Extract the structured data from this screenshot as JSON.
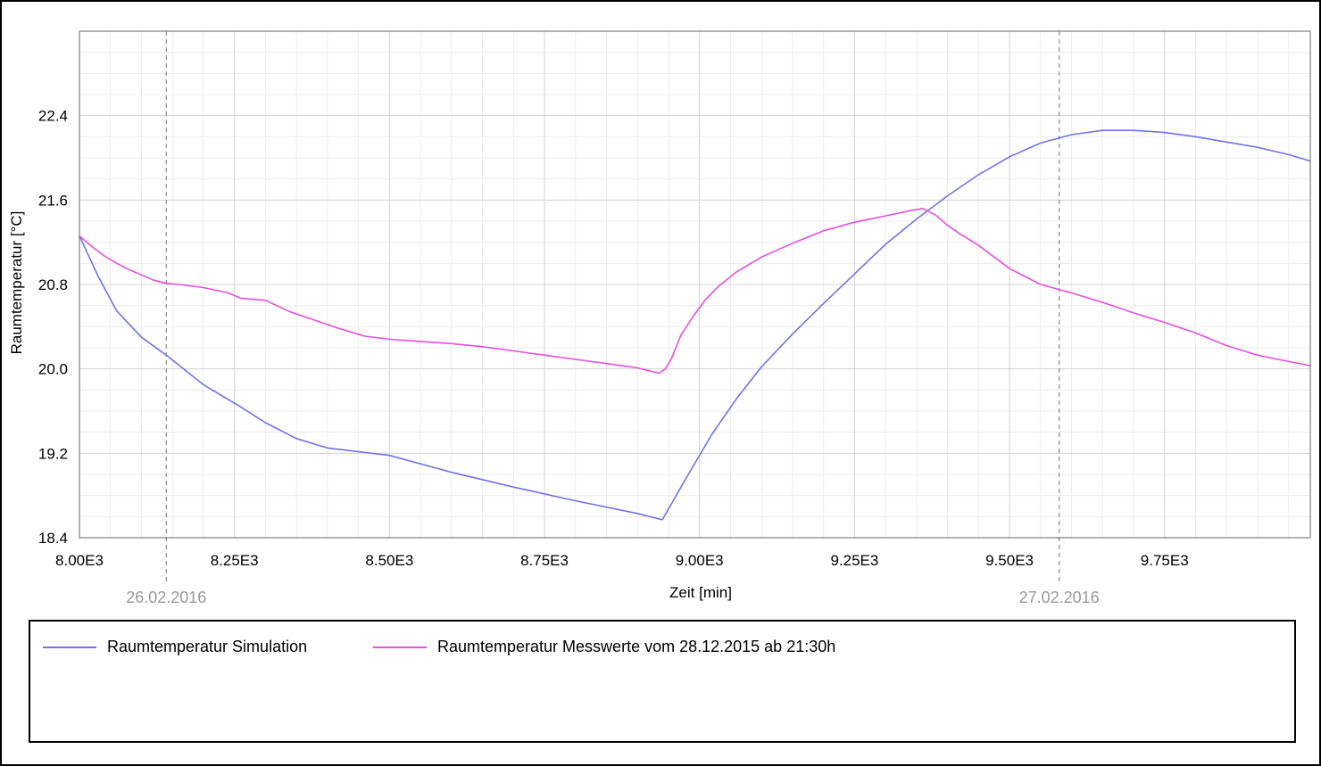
{
  "chart_data": {
    "type": "line",
    "xlabel": "Zeit [min]",
    "ylabel": "Raumtemperatur [°C]",
    "xlim": [
      8000,
      9985
    ],
    "ylim": [
      18.4,
      23.2
    ],
    "x_ticks": [
      {
        "value": 8000,
        "label": "8.00E3"
      },
      {
        "value": 8250,
        "label": "8.25E3"
      },
      {
        "value": 8500,
        "label": "8.50E3"
      },
      {
        "value": 8750,
        "label": "8.75E3"
      },
      {
        "value": 9000,
        "label": "9.00E3"
      },
      {
        "value": 9250,
        "label": "9.25E3"
      },
      {
        "value": 9500,
        "label": "9.50E3"
      },
      {
        "value": 9750,
        "label": "9.75E3"
      }
    ],
    "y_ticks": [
      {
        "value": 18.4,
        "label": "18.4"
      },
      {
        "value": 19.2,
        "label": "19.2"
      },
      {
        "value": 20.0,
        "label": "20.0"
      },
      {
        "value": 20.8,
        "label": "20.8"
      },
      {
        "value": 21.6,
        "label": "21.6"
      },
      {
        "value": 22.4,
        "label": "22.4"
      }
    ],
    "grid": true,
    "date_markers": [
      {
        "x": 8140,
        "label": "26.02.2016"
      },
      {
        "x": 9580,
        "label": "27.02.2016"
      }
    ],
    "legend_position": "bottom",
    "series": [
      {
        "name": "Raumtemperatur Simulation",
        "color": "#6f74e6",
        "x": [
          8000,
          8030,
          8060,
          8100,
          8140,
          8200,
          8260,
          8300,
          8350,
          8400,
          8500,
          8600,
          8700,
          8800,
          8900,
          8940,
          8980,
          9020,
          9060,
          9100,
          9150,
          9200,
          9250,
          9300,
          9350,
          9400,
          9450,
          9500,
          9550,
          9600,
          9650,
          9700,
          9750,
          9800,
          9850,
          9900,
          9950,
          9985
        ],
        "y": [
          21.26,
          20.88,
          20.55,
          20.3,
          20.13,
          19.85,
          19.64,
          19.49,
          19.34,
          19.25,
          19.18,
          19.02,
          18.88,
          18.75,
          18.63,
          18.57,
          18.98,
          19.38,
          19.72,
          20.02,
          20.33,
          20.62,
          20.9,
          21.18,
          21.42,
          21.64,
          21.84,
          22.01,
          22.14,
          22.22,
          22.26,
          22.26,
          22.24,
          22.2,
          22.15,
          22.1,
          22.03,
          21.97
        ]
      },
      {
        "name": "Raumtemperatur Messwerte vom 28.12.2015 ab 21:30h",
        "color": "#e64ee0",
        "x": [
          8000,
          8020,
          8040,
          8060,
          8080,
          8100,
          8120,
          8140,
          8160,
          8200,
          8240,
          8260,
          8300,
          8340,
          8380,
          8420,
          8460,
          8500,
          8550,
          8600,
          8650,
          8700,
          8750,
          8800,
          8850,
          8900,
          8920,
          8935,
          8945,
          8955,
          8970,
          8990,
          9010,
          9030,
          9060,
          9100,
          9150,
          9200,
          9250,
          9300,
          9340,
          9360,
          9380,
          9400,
          9420,
          9450,
          9500,
          9550,
          9600,
          9650,
          9700,
          9750,
          9800,
          9850,
          9900,
          9950,
          9985
        ],
        "y": [
          21.26,
          21.16,
          21.07,
          21.0,
          20.94,
          20.89,
          20.84,
          20.81,
          20.8,
          20.77,
          20.72,
          20.67,
          20.65,
          20.54,
          20.46,
          20.38,
          20.31,
          20.28,
          20.26,
          20.24,
          20.21,
          20.17,
          20.13,
          20.09,
          20.05,
          20.01,
          19.98,
          19.96,
          20.0,
          20.1,
          20.32,
          20.5,
          20.66,
          20.78,
          20.92,
          21.06,
          21.19,
          21.31,
          21.39,
          21.45,
          21.5,
          21.52,
          21.46,
          21.36,
          21.28,
          21.17,
          20.95,
          20.8,
          20.72,
          20.63,
          20.53,
          20.44,
          20.34,
          20.22,
          20.13,
          20.07,
          20.03
        ]
      }
    ]
  }
}
